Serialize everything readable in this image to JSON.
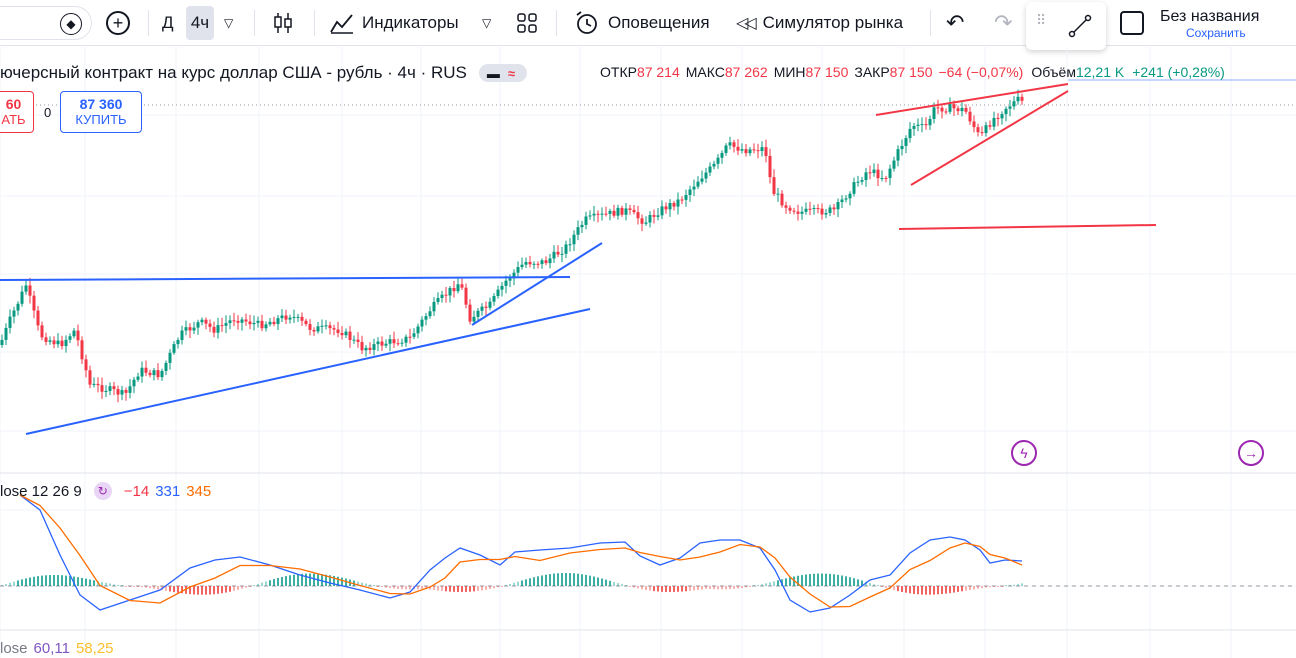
{
  "toolbar": {
    "interval_short": "Д",
    "interval_active": "4ч",
    "indicators_label": "Индикаторы",
    "alerts_label": "Оповещения",
    "replay_label": "Симулятор рынка",
    "layout_name": "Без названия",
    "save_label": "Сохранить"
  },
  "symbol": {
    "title": "ючерсный контракт на курс доллар США - рубль · 4ч · RUS",
    "open_label": "ОТКР",
    "open_value": "87 214",
    "high_label": "МАКС",
    "high_value": "87 262",
    "low_label": "МИН",
    "low_value": "87 150",
    "close_label": "ЗАКР",
    "close_value": "87 150",
    "change": "−64 (−0,07%)",
    "volume_label": "Объём",
    "volume_value": "12,21 K",
    "volume_change": "+241 (+0,28%)"
  },
  "trade": {
    "sell_price": "60",
    "sell_label": "АТЬ",
    "spread": "0",
    "buy_price": "87 360",
    "buy_label": "КУПИТЬ"
  },
  "macd": {
    "label": "lose 12 26 9",
    "histogram": "−14",
    "macd_value": "331",
    "signal_value": "345"
  },
  "rsi": {
    "label": "lose",
    "value1": "60,11",
    "value2": "58,25"
  },
  "colors": {
    "up": "#089981",
    "down": "#f23645",
    "trend_blue": "#2962ff",
    "trend_red": "#f23645",
    "macd_line": "#2962ff",
    "signal_line": "#ff6d00"
  }
}
